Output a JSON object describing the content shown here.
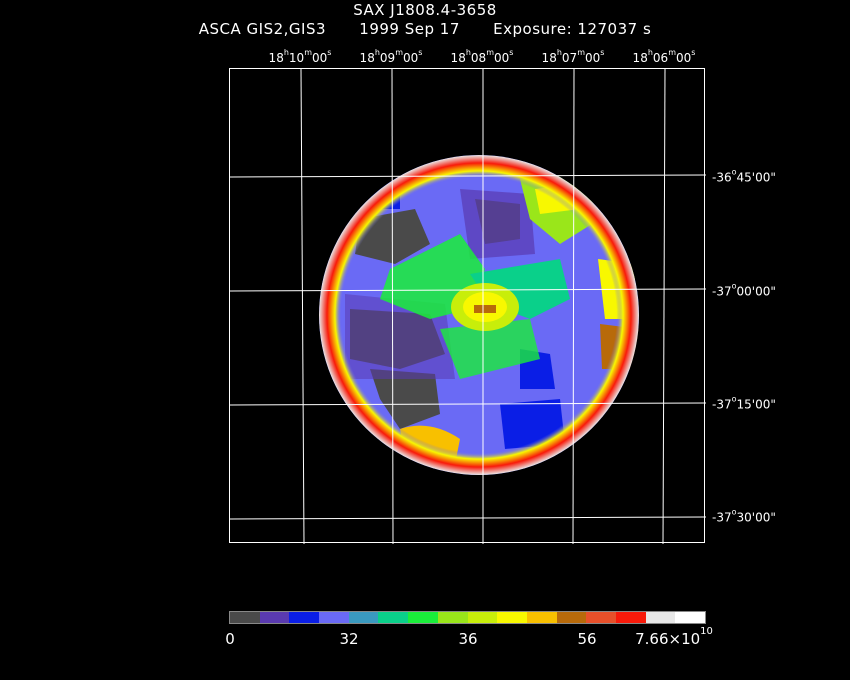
{
  "title": "SAX J1808.4-3658",
  "subtitle": {
    "instrument": "ASCA GIS2,GIS3",
    "date": "1999 Sep 17",
    "exposure": "Exposure: 127037 s"
  },
  "ra_labels": [
    {
      "h": "18",
      "m": "10",
      "s": "00"
    },
    {
      "h": "18",
      "m": "09",
      "s": "00"
    },
    {
      "h": "18",
      "m": "08",
      "s": "00"
    },
    {
      "h": "18",
      "m": "07",
      "s": "00"
    },
    {
      "h": "18",
      "m": "06",
      "s": "00"
    }
  ],
  "dec_labels": [
    {
      "d": "-36",
      "rest": "45'00\""
    },
    {
      "d": "-37",
      "rest": "00'00\""
    },
    {
      "d": "-37",
      "rest": "15'00\""
    },
    {
      "d": "-37",
      "rest": "30'00\""
    }
  ],
  "colorbar": {
    "colors": [
      "#4a4a4a",
      "#5a3ab0",
      "#0a1ee6",
      "#6a6af5",
      "#3a9ac0",
      "#0ad08a",
      "#1aee3a",
      "#9ae61a",
      "#c8ee0a",
      "#f8f800",
      "#f8c000",
      "#b86a0a",
      "#e8502a",
      "#f81a0a",
      "#e8e8e8",
      "#ffffff"
    ],
    "labels": [
      "0",
      "32",
      "36",
      "56",
      "7.66×10"
    ],
    "exponent": "10"
  }
}
